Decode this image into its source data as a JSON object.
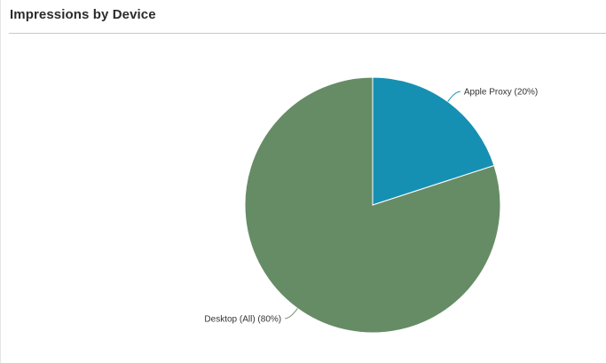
{
  "panel": {
    "title": "Impressions by Device"
  },
  "chart_data": {
    "type": "pie",
    "title": "Impressions by Device",
    "slices": [
      {
        "label": "Apple Proxy (20%)",
        "value": 20,
        "color": "#1690b2"
      },
      {
        "label": "Desktop (All) (80%)",
        "value": 80,
        "color": "#668c65"
      }
    ]
  }
}
